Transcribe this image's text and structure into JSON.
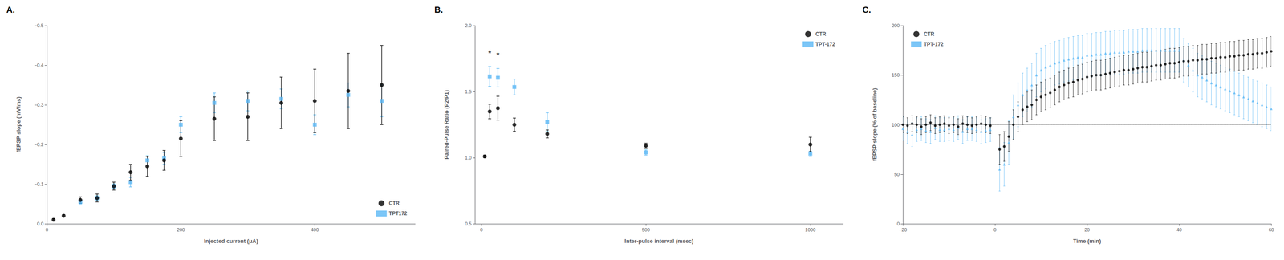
{
  "chart_data": [
    {
      "type": "scatter",
      "title": "A.",
      "xlabel": "Injected current (μA)",
      "ylabel": "fEPSP slope (mV/ms)",
      "xlim": [
        0,
        550
      ],
      "xticks": [
        0,
        200,
        400
      ],
      "ylim": [
        0.0,
        -0.5
      ],
      "yticks": [
        {
          "value": -0.5,
          "label": "−0.5"
        },
        {
          "value": -0.4,
          "label": "−0.4"
        },
        {
          "value": -0.3,
          "label": "−0.3"
        },
        {
          "value": -0.2,
          "label": "−0.2"
        },
        {
          "value": -0.1,
          "label": "−0.1"
        },
        {
          "value": 0.0,
          "label": "0.0"
        }
      ],
      "grid": false,
      "legend": "lower right",
      "series": [
        {
          "name": "CTR",
          "color": "#000000",
          "marker": "circle",
          "x": [
            10,
            25,
            50,
            75,
            100,
            125,
            150,
            175,
            200,
            250,
            300,
            350,
            400,
            450,
            500
          ],
          "values": [
            -0.01,
            -0.02,
            -0.06,
            -0.065,
            -0.095,
            -0.13,
            -0.145,
            -0.16,
            -0.215,
            -0.265,
            -0.27,
            -0.305,
            -0.31,
            -0.335,
            -0.35
          ],
          "errors": [
            0.003,
            0.003,
            0.008,
            0.01,
            0.01,
            0.02,
            0.025,
            0.025,
            0.045,
            0.055,
            0.06,
            0.065,
            0.08,
            0.095,
            0.1
          ]
        },
        {
          "name": "TPT172",
          "color": "#5bb8f5",
          "marker": "square",
          "x": [
            50,
            75,
            100,
            125,
            150,
            175,
            200,
            250,
            300,
            350,
            400,
            450,
            500
          ],
          "values": [
            -0.055,
            -0.065,
            -0.095,
            -0.105,
            -0.16,
            -0.165,
            -0.25,
            -0.305,
            -0.31,
            -0.315,
            -0.25,
            -0.325,
            -0.31
          ],
          "errors": [
            0.005,
            0.006,
            0.006,
            0.012,
            0.012,
            0.015,
            0.02,
            0.025,
            0.025,
            0.025,
            0.025,
            0.03,
            0.04
          ]
        }
      ]
    },
    {
      "type": "scatter",
      "title": "B.",
      "xlabel": "Inter-pulse interval (msec)",
      "ylabel": "Paired-Pulse Ratio (P2/P1)",
      "xlim": [
        -20,
        1100
      ],
      "xticks": [
        0,
        500,
        1000
      ],
      "ylim": [
        0.5,
        2.0
      ],
      "yticks": [
        0.5,
        {
          "value": 1.0,
          "label": "1.0"
        },
        1.5,
        {
          "value": 2.0,
          "label": "2.0"
        }
      ],
      "grid": false,
      "legend": "upper right",
      "series": [
        {
          "name": "CTR",
          "color": "#000000",
          "marker": "circle",
          "x": [
            10,
            25,
            50,
            100,
            200,
            500,
            1000
          ],
          "values": [
            1.01,
            1.35,
            1.375,
            1.25,
            1.18,
            1.09,
            1.1
          ],
          "errors": [
            0.01,
            0.055,
            0.09,
            0.05,
            0.03,
            0.02,
            0.055
          ]
        },
        {
          "name": "TPT-172",
          "color": "#5bb8f5",
          "marker": "square",
          "x": [
            25,
            50,
            100,
            200,
            500,
            1000
          ],
          "values": [
            1.615,
            1.605,
            1.535,
            1.27,
            1.04,
            1.03
          ],
          "errors": [
            0.075,
            0.07,
            0.06,
            0.07,
            0.02,
            0.02
          ]
        }
      ],
      "annotations": [
        {
          "text": "*",
          "x": 25,
          "y": 1.76,
          "color": "#000000"
        },
        {
          "text": "*",
          "x": 50,
          "y": 1.745,
          "color": "#000000"
        }
      ]
    },
    {
      "type": "scatter",
      "title": "C.",
      "xlabel": "Time (min)",
      "ylabel": "fEPSP slope (% of baseline)",
      "xlim": [
        -20,
        60
      ],
      "xticks": [
        {
          "value": -20,
          "label": "−20"
        },
        0,
        20,
        40,
        60
      ],
      "ylim": [
        0,
        200
      ],
      "yticks": [
        0,
        50,
        100,
        150,
        200
      ],
      "grid": false,
      "legend": "upper left",
      "series": [
        {
          "name": "CTR",
          "color": "#000000",
          "marker": "circle",
          "x": [
            -20,
            -19,
            -18,
            -17,
            -16,
            -15,
            -14,
            -13,
            -12,
            -11,
            -10,
            -9,
            -8,
            -7,
            -6,
            -5,
            -4,
            -3,
            -2,
            -1,
            1,
            2,
            3,
            4,
            5,
            6,
            7,
            8,
            9,
            10,
            11,
            12,
            13,
            14,
            15,
            16,
            17,
            18,
            19,
            20,
            21,
            22,
            23,
            24,
            25,
            26,
            27,
            28,
            29,
            30,
            31,
            32,
            33,
            34,
            35,
            36,
            37,
            38,
            39,
            40,
            41,
            42,
            43,
            44,
            45,
            46,
            47,
            48,
            49,
            50,
            51,
            52,
            53,
            54,
            55,
            56,
            57,
            58,
            59,
            60
          ],
          "values": [
            100,
            99,
            101,
            100,
            98,
            100,
            102,
            99,
            100,
            101,
            99,
            100,
            98,
            101,
            100,
            99,
            100,
            101,
            100,
            99,
            75,
            78,
            88,
            100,
            108,
            115,
            118,
            120,
            125,
            128,
            130,
            132,
            135,
            138,
            140,
            142,
            143,
            145,
            146,
            148,
            149,
            150,
            150,
            151,
            152,
            153,
            154,
            155,
            155,
            156,
            157,
            158,
            158,
            159,
            160,
            160,
            161,
            162,
            162,
            163,
            164,
            164,
            165,
            165,
            166,
            166,
            167,
            167,
            168,
            168,
            169,
            169,
            170,
            170,
            171,
            171,
            172,
            172,
            173,
            174
          ],
          "errors": [
            8,
            8,
            8,
            8,
            8,
            8,
            8,
            8,
            8,
            8,
            8,
            8,
            8,
            8,
            8,
            8,
            8,
            8,
            8,
            8,
            15,
            15,
            15,
            15,
            15,
            15,
            15,
            15,
            15,
            15,
            15,
            15,
            15,
            15,
            15,
            15,
            15,
            15,
            15,
            15,
            15,
            15,
            15,
            15,
            15,
            15,
            15,
            15,
            15,
            15,
            15,
            15,
            15,
            15,
            15,
            15,
            15,
            15,
            15,
            15,
            15,
            15,
            15,
            15,
            15,
            15,
            15,
            15,
            15,
            15,
            15,
            15,
            15,
            15,
            15,
            15,
            15,
            15,
            15,
            15
          ]
        },
        {
          "name": "TPT-172",
          "color": "#5bb8f5",
          "marker": "triangle",
          "x": [
            -20,
            -19,
            -18,
            -17,
            -16,
            -15,
            -14,
            -13,
            -12,
            -11,
            -10,
            -9,
            -8,
            -7,
            -6,
            -5,
            -4,
            -3,
            -2,
            -1,
            1,
            2,
            3,
            4,
            5,
            6,
            7,
            8,
            9,
            10,
            11,
            12,
            13,
            14,
            15,
            16,
            17,
            18,
            19,
            20,
            21,
            22,
            23,
            24,
            25,
            26,
            27,
            28,
            29,
            30,
            31,
            32,
            33,
            34,
            35,
            36,
            37,
            38,
            39,
            40,
            41,
            42,
            43,
            44,
            45,
            46,
            47,
            48,
            49,
            50,
            51,
            52,
            53,
            54,
            55,
            56,
            57,
            58,
            59,
            60
          ],
          "values": [
            96,
            93,
            90,
            95,
            96,
            94,
            93,
            97,
            95,
            95,
            96,
            95,
            97,
            93,
            96,
            96,
            95,
            93,
            94,
            95,
            55,
            60,
            82,
            108,
            120,
            130,
            135,
            140,
            150,
            155,
            158,
            160,
            162,
            163,
            165,
            166,
            167,
            168,
            168,
            170,
            170,
            171,
            171,
            172,
            172,
            173,
            173,
            173,
            174,
            174,
            174,
            175,
            175,
            175,
            175,
            175,
            175,
            175,
            175,
            175,
            165,
            160,
            155,
            150,
            148,
            145,
            142,
            140,
            138,
            136,
            134,
            132,
            130,
            128,
            126,
            124,
            122,
            120,
            118,
            116
          ],
          "errors": [
            12,
            12,
            12,
            12,
            12,
            12,
            12,
            12,
            12,
            12,
            12,
            12,
            12,
            12,
            12,
            12,
            12,
            12,
            12,
            12,
            22,
            22,
            22,
            22,
            22,
            22,
            22,
            22,
            22,
            22,
            22,
            22,
            22,
            22,
            22,
            22,
            22,
            22,
            22,
            22,
            22,
            22,
            22,
            22,
            22,
            22,
            22,
            22,
            22,
            22,
            22,
            22,
            22,
            22,
            22,
            22,
            22,
            22,
            22,
            22,
            22,
            22,
            22,
            22,
            22,
            22,
            22,
            22,
            22,
            22,
            22,
            22,
            22,
            22,
            22,
            22,
            22,
            22,
            22,
            22
          ]
        }
      ],
      "reference_lines": [
        {
          "y": 100,
          "line_style": "dotted",
          "color": "#000000"
        }
      ]
    }
  ]
}
